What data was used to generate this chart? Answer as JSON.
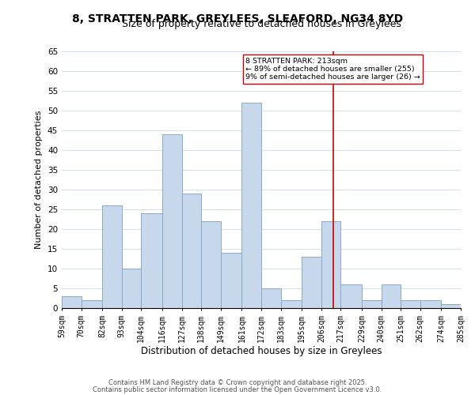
{
  "title_line1": "8, STRATTEN PARK, GREYLEES, SLEAFORD, NG34 8YD",
  "title_line2": "Size of property relative to detached houses in Greylees",
  "xlabel": "Distribution of detached houses by size in Greylees",
  "ylabel": "Number of detached properties",
  "bin_labels": [
    "59sqm",
    "70sqm",
    "82sqm",
    "93sqm",
    "104sqm",
    "116sqm",
    "127sqm",
    "138sqm",
    "149sqm",
    "161sqm",
    "172sqm",
    "183sqm",
    "195sqm",
    "206sqm",
    "217sqm",
    "229sqm",
    "240sqm",
    "251sqm",
    "262sqm",
    "274sqm",
    "285sqm"
  ],
  "bin_edges": [
    59,
    70,
    82,
    93,
    104,
    116,
    127,
    138,
    149,
    161,
    172,
    183,
    195,
    206,
    217,
    229,
    240,
    251,
    262,
    274,
    285
  ],
  "bar_heights": [
    3,
    2,
    26,
    10,
    24,
    44,
    29,
    22,
    14,
    52,
    5,
    2,
    13,
    22,
    6,
    2,
    6,
    2,
    2,
    1
  ],
  "bar_color": "#c8d8ec",
  "bar_edge_color": "#8aaac8",
  "vline_x": 213,
  "vline_color": "#cc0000",
  "annotation_lines": [
    "8 STRATTEN PARK: 213sqm",
    "← 89% of detached houses are smaller (255)",
    "9% of semi-detached houses are larger (26) →"
  ],
  "ylim": [
    0,
    65
  ],
  "yticks": [
    0,
    5,
    10,
    15,
    20,
    25,
    30,
    35,
    40,
    45,
    50,
    55,
    60,
    65
  ],
  "footnote1": "Contains HM Land Registry data © Crown copyright and database right 2025.",
  "footnote2": "Contains public sector information licensed under the Open Government Licence v3.0.",
  "background_color": "#ffffff",
  "grid_color": "#d0e0ee"
}
